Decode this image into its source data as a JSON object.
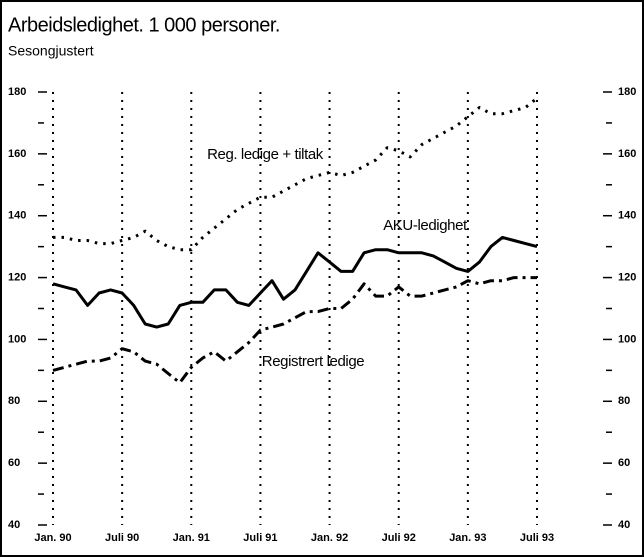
{
  "chart_data": {
    "type": "line",
    "title": "Arbeidsledighet. 1 000 personer.",
    "subtitle": "Sesongjustert",
    "categories": [
      "Jan. 90",
      null,
      null,
      null,
      null,
      null,
      "Juli 90",
      null,
      null,
      null,
      null,
      null,
      "Jan. 91",
      null,
      null,
      null,
      null,
      null,
      "Juli 91",
      null,
      null,
      null,
      null,
      null,
      "Jan. 92",
      null,
      null,
      null,
      null,
      null,
      "Juli 92",
      null,
      null,
      null,
      null,
      null,
      "Jan. 93",
      null,
      null,
      null,
      null,
      null,
      "Juli 93"
    ],
    "series": [
      {
        "name": "Reg. ledige + tiltak",
        "color": "#000",
        "style": "dotted",
        "values": [
          133,
          133,
          132,
          132,
          131,
          131,
          132,
          133,
          135,
          132,
          130,
          129,
          129,
          133,
          136,
          139,
          142,
          144,
          146,
          146,
          148,
          150,
          152,
          153,
          154,
          153,
          154,
          156,
          158,
          162,
          161,
          159,
          163,
          165,
          167,
          169,
          172,
          175,
          173,
          173,
          174,
          175,
          178
        ]
      },
      {
        "name": "AKU-ledighet",
        "color": "#000",
        "style": "solid",
        "values": [
          118,
          117,
          116,
          111,
          115,
          116,
          115,
          111,
          105,
          104,
          105,
          111,
          112,
          112,
          116,
          116,
          112,
          111,
          115,
          119,
          113,
          116,
          122,
          128,
          125,
          122,
          122,
          128,
          129,
          129,
          128,
          128,
          128,
          127,
          125,
          123,
          122,
          125,
          130,
          133,
          132,
          131,
          130
        ]
      },
      {
        "name": "Registrert ledige",
        "color": "#000",
        "style": "dashdot",
        "values": [
          90,
          91,
          92,
          93,
          93,
          94,
          97,
          96,
          93,
          92,
          89,
          86,
          91,
          94,
          96,
          93,
          96,
          99,
          103,
          104,
          105,
          107,
          109,
          109,
          110,
          110,
          113,
          118,
          114,
          114,
          117,
          114,
          114,
          115,
          116,
          117,
          119,
          118,
          119,
          119,
          120,
          120,
          120
        ]
      }
    ],
    "ylim": [
      40,
      180
    ],
    "yticks": [
      40,
      60,
      80,
      100,
      120,
      140,
      160,
      180
    ],
    "yminorticks": [
      50,
      70,
      90,
      110,
      130,
      150,
      170
    ],
    "y2lim": [
      40,
      180
    ],
    "y2ticks": [
      40,
      60,
      80,
      100,
      120,
      140,
      160,
      180
    ],
    "grid": true
  }
}
